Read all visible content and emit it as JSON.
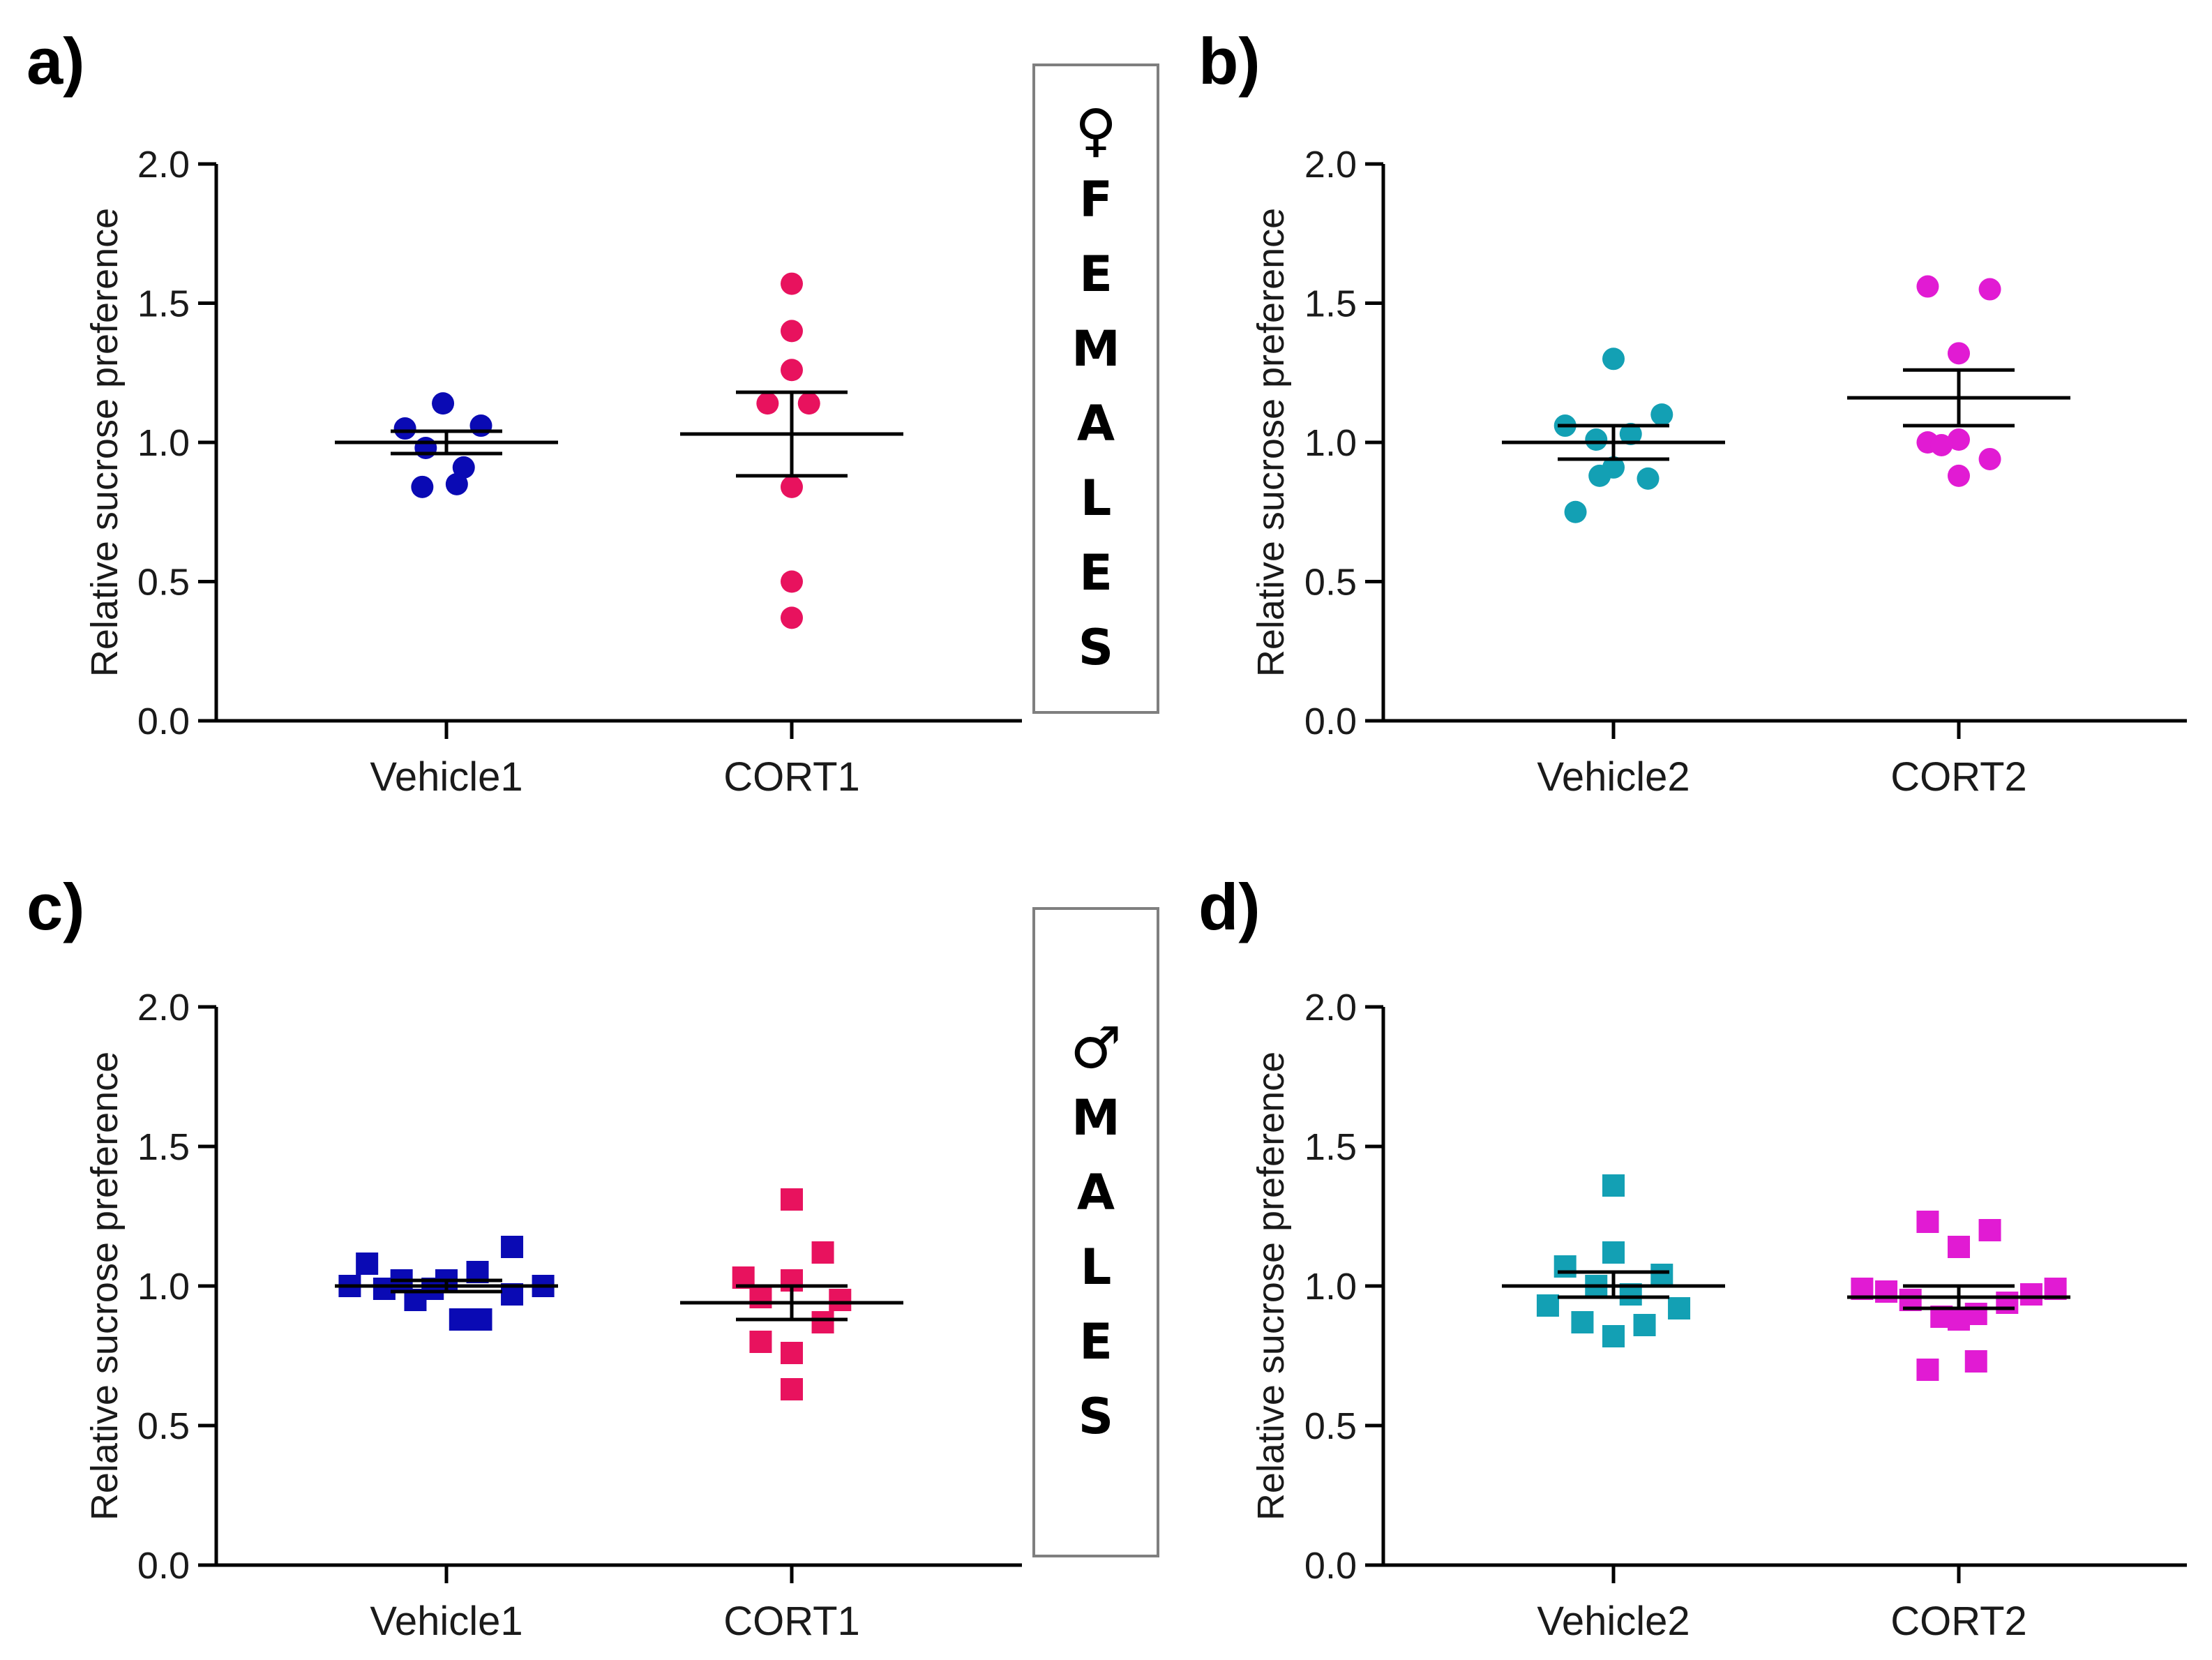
{
  "chart_data": [
    {
      "id": "a",
      "panel_label": "a)",
      "type": "scatter",
      "marker": "circle",
      "ylabel": "Relative sucrose preference",
      "ylim": [
        0,
        2.0
      ],
      "yticks": [
        "0.0",
        "0.5",
        "1.0",
        "1.5",
        "2.0"
      ],
      "categories": [
        "Vehicle1",
        "CORT1"
      ],
      "series": [
        {
          "category": "Vehicle1",
          "color": "#0a0ab4",
          "mean": 1.0,
          "sem": [
            0.96,
            1.04
          ],
          "points": [
            [
              -0.12,
              1.05
            ],
            [
              -0.01,
              1.14
            ],
            [
              0.1,
              1.06
            ],
            [
              -0.06,
              0.98
            ],
            [
              0.05,
              0.91
            ],
            [
              -0.07,
              0.84
            ],
            [
              0.03,
              0.85
            ]
          ]
        },
        {
          "category": "CORT1",
          "color": "#e8125e",
          "mean": 1.03,
          "sem": [
            0.88,
            1.18
          ],
          "points": [
            [
              0.0,
              1.57
            ],
            [
              0.0,
              1.4
            ],
            [
              0.0,
              1.26
            ],
            [
              -0.07,
              1.14
            ],
            [
              0.05,
              1.14
            ],
            [
              0.0,
              0.84
            ],
            [
              0.0,
              0.5
            ],
            [
              0.0,
              0.37
            ]
          ]
        }
      ]
    },
    {
      "id": "b",
      "panel_label": "b)",
      "type": "scatter",
      "marker": "circle",
      "ylabel": "Relative sucrose preference",
      "ylim": [
        0,
        2.0
      ],
      "yticks": [
        "0.0",
        "0.5",
        "1.0",
        "1.5",
        "2.0"
      ],
      "categories": [
        "Vehicle2",
        "CORT2"
      ],
      "series": [
        {
          "category": "Vehicle2",
          "color": "#13a0b4",
          "mean": 1.0,
          "sem": [
            0.94,
            1.06
          ],
          "points": [
            [
              0.0,
              1.3
            ],
            [
              -0.14,
              1.06
            ],
            [
              0.14,
              1.1
            ],
            [
              0.05,
              1.03
            ],
            [
              -0.05,
              1.01
            ],
            [
              0.0,
              0.91
            ],
            [
              0.1,
              0.87
            ],
            [
              -0.04,
              0.88
            ],
            [
              -0.11,
              0.75
            ]
          ]
        },
        {
          "category": "CORT2",
          "color": "#e11bd3",
          "mean": 1.16,
          "sem": [
            1.06,
            1.26
          ],
          "points": [
            [
              -0.09,
              1.56
            ],
            [
              0.09,
              1.55
            ],
            [
              0.0,
              1.32
            ],
            [
              -0.09,
              1.0
            ],
            [
              0.0,
              1.01
            ],
            [
              -0.05,
              0.99
            ],
            [
              0.09,
              0.94
            ],
            [
              0.0,
              0.88
            ]
          ]
        }
      ]
    },
    {
      "id": "c",
      "panel_label": "c)",
      "type": "scatter",
      "marker": "square",
      "ylabel": "Relative sucrose preference",
      "ylim": [
        0,
        2.0
      ],
      "yticks": [
        "0.0",
        "0.5",
        "1.0",
        "1.5",
        "2.0"
      ],
      "categories": [
        "Vehicle1",
        "CORT1"
      ],
      "series": [
        {
          "category": "Vehicle1",
          "color": "#0a0ab4",
          "mean": 1.0,
          "sem": [
            0.98,
            1.02
          ],
          "points": [
            [
              -0.28,
              1.0
            ],
            [
              -0.23,
              1.08
            ],
            [
              -0.18,
              0.99
            ],
            [
              -0.13,
              1.02
            ],
            [
              -0.09,
              0.95
            ],
            [
              -0.04,
              0.99
            ],
            [
              0.0,
              1.02
            ],
            [
              0.04,
              0.88
            ],
            [
              0.09,
              1.05
            ],
            [
              0.1,
              0.88
            ],
            [
              0.19,
              0.97
            ],
            [
              0.19,
              1.14
            ],
            [
              0.28,
              1.0
            ]
          ]
        },
        {
          "category": "CORT1",
          "color": "#e8125e",
          "mean": 0.94,
          "sem": [
            0.88,
            1.0
          ],
          "points": [
            [
              0.0,
              1.31
            ],
            [
              0.09,
              1.12
            ],
            [
              -0.14,
              1.03
            ],
            [
              -0.09,
              0.96
            ],
            [
              0.0,
              1.02
            ],
            [
              0.14,
              0.95
            ],
            [
              -0.09,
              0.8
            ],
            [
              0.09,
              0.87
            ],
            [
              0.0,
              0.76
            ],
            [
              0.0,
              0.63
            ]
          ]
        }
      ]
    },
    {
      "id": "d",
      "panel_label": "d)",
      "type": "scatter",
      "marker": "square",
      "ylabel": "Relative sucrose preference",
      "ylim": [
        0,
        2.0
      ],
      "yticks": [
        "0.0",
        "0.5",
        "1.0",
        "1.5",
        "2.0"
      ],
      "categories": [
        "Vehicle2",
        "CORT2"
      ],
      "series": [
        {
          "category": "Vehicle2",
          "color": "#13a0b4",
          "mean": 1.0,
          "sem": [
            0.96,
            1.05
          ],
          "points": [
            [
              0.0,
              1.36
            ],
            [
              0.0,
              1.12
            ],
            [
              -0.14,
              1.07
            ],
            [
              0.14,
              1.04
            ],
            [
              -0.05,
              1.0
            ],
            [
              0.05,
              0.97
            ],
            [
              -0.19,
              0.93
            ],
            [
              0.19,
              0.92
            ],
            [
              -0.09,
              0.87
            ],
            [
              0.09,
              0.86
            ],
            [
              0.0,
              0.82
            ]
          ]
        },
        {
          "category": "CORT2",
          "color": "#e11bd3",
          "mean": 0.96,
          "sem": [
            0.92,
            1.0
          ],
          "points": [
            [
              -0.09,
              1.23
            ],
            [
              0.09,
              1.2
            ],
            [
              0.0,
              1.14
            ],
            [
              -0.28,
              0.99
            ],
            [
              -0.21,
              0.98
            ],
            [
              0.28,
              0.99
            ],
            [
              0.21,
              0.97
            ],
            [
              -0.14,
              0.95
            ],
            [
              0.14,
              0.94
            ],
            [
              -0.05,
              0.89
            ],
            [
              0.05,
              0.9
            ],
            [
              0.0,
              0.88
            ],
            [
              -0.09,
              0.7
            ],
            [
              0.05,
              0.73
            ]
          ]
        }
      ]
    }
  ],
  "sex_boxes": [
    {
      "id": "female",
      "symbol": "♀",
      "letters": [
        "F",
        "E",
        "M",
        "A",
        "L",
        "E",
        "S"
      ]
    },
    {
      "id": "male",
      "symbol": "♂",
      "letters": [
        "M",
        "A",
        "L",
        "E",
        "S"
      ]
    }
  ]
}
